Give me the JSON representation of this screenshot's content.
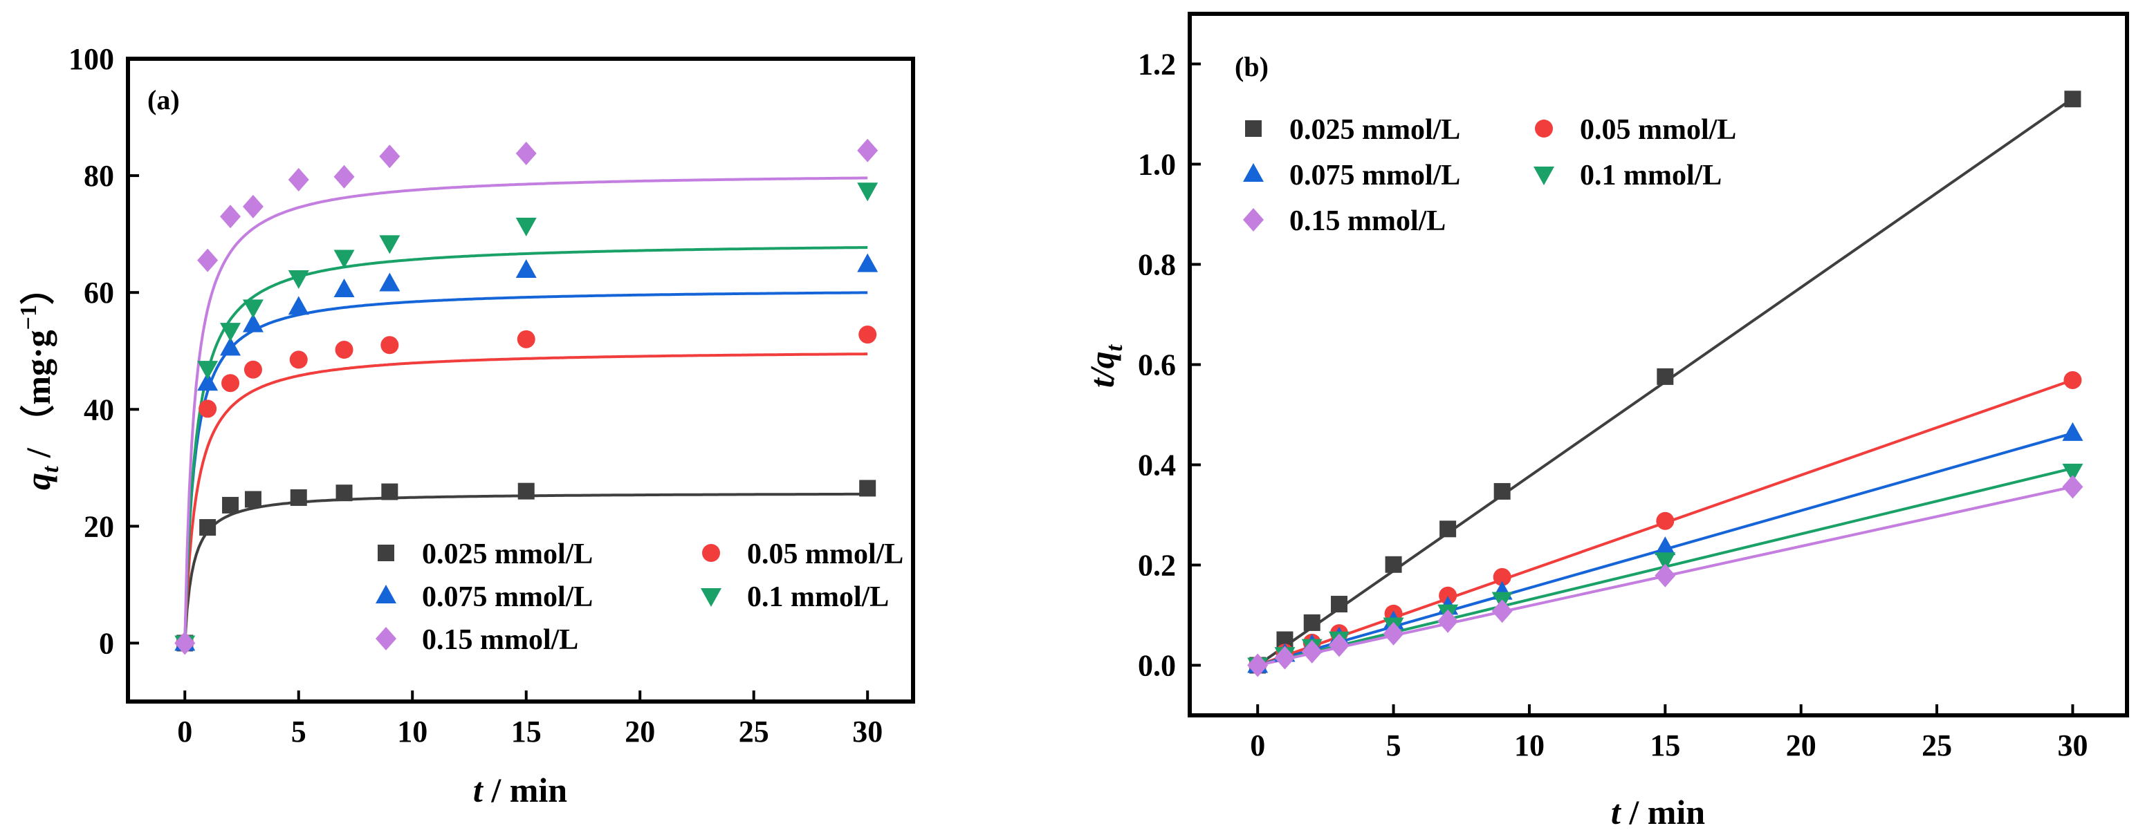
{
  "chart_data": [
    {
      "panel": "(a)",
      "type": "scatter",
      "xlabel_italic": "t",
      "xlabel_rest": " / min",
      "ylabel_q": "q",
      "ylabel_sub": "t",
      "ylabel_rest": " / （mg·g",
      "ylabel_sup": "−1",
      "ylabel_close": "）",
      "xlim": [
        -2.5,
        32
      ],
      "ylim": [
        -10,
        100
      ],
      "xticks": [
        0,
        5,
        10,
        15,
        20,
        25,
        30
      ],
      "yticks": [
        0,
        20,
        40,
        60,
        80,
        100
      ],
      "legend_columns": 2,
      "legend_position": "bottom-right",
      "fit_model": "pseudo-second-order",
      "series": [
        {
          "name": "0.025 mmol/L",
          "marker": "square",
          "color": "#3f3f3f",
          "x": [
            0,
            1,
            2,
            3,
            5,
            7,
            9,
            15,
            30
          ],
          "y": [
            0,
            19.8,
            23.6,
            24.6,
            24.9,
            25.7,
            25.9,
            26.0,
            26.5
          ],
          "fit": {
            "qe": 25.8,
            "k": 0.11
          }
        },
        {
          "name": "0.05 mmol/L",
          "marker": "circle",
          "color": "#f23d3d",
          "x": [
            0,
            1,
            2,
            3,
            5,
            7,
            9,
            15,
            30
          ],
          "y": [
            0,
            40.1,
            44.5,
            46.8,
            48.5,
            50.2,
            51.0,
            52.0,
            52.8
          ],
          "fit": {
            "qe": 50.3,
            "k": 0.04
          }
        },
        {
          "name": "0.075 mmol/L",
          "marker": "triangle-up",
          "color": "#1565d8",
          "x": [
            0,
            1,
            2,
            3,
            5,
            7,
            9,
            15,
            30
          ],
          "y": [
            0,
            44.5,
            50.5,
            54.5,
            57.5,
            60.5,
            61.5,
            63.8,
            64.8
          ],
          "fit": {
            "qe": 60.8,
            "k": 0.04
          }
        },
        {
          "name": "0.1 mmol/L",
          "marker": "triangle-down",
          "color": "#1aa168",
          "x": [
            0,
            1,
            2,
            3,
            5,
            7,
            9,
            15,
            30
          ],
          "y": [
            0,
            47.0,
            53.5,
            57.5,
            62.5,
            66.0,
            68.5,
            71.5,
            77.5
          ],
          "fit": {
            "qe": 68.8,
            "k": 0.03
          }
        },
        {
          "name": "0.15 mmol/L",
          "marker": "diamond",
          "color": "#c37ee0",
          "x": [
            0,
            1,
            2,
            3,
            5,
            7,
            9,
            15,
            30
          ],
          "y": [
            0,
            65.5,
            73.0,
            74.7,
            79.3,
            79.8,
            83.3,
            83.8,
            84.3
          ],
          "fit": {
            "qe": 80.7,
            "k": 0.03
          }
        }
      ]
    },
    {
      "panel": "(b)",
      "type": "scatter",
      "xlabel_italic": "t",
      "xlabel_rest": " / min",
      "ylabel_t": "t/q",
      "ylabel_sub": "t",
      "xlim": [
        -2.5,
        32
      ],
      "ylim": [
        -0.1,
        1.3
      ],
      "xticks": [
        0,
        5,
        10,
        15,
        20,
        25,
        30
      ],
      "yticks": [
        0.0,
        0.2,
        0.4,
        0.6,
        0.8,
        1.0,
        1.2
      ],
      "legend_columns": 2,
      "legend_position": "top-left",
      "fit_model": "linear",
      "series": [
        {
          "name": "0.025 mmol/L",
          "marker": "square",
          "color": "#3f3f3f",
          "x": [
            0,
            1,
            2,
            3,
            5,
            7,
            9,
            15,
            30
          ],
          "y": [
            0,
            0.051,
            0.085,
            0.122,
            0.201,
            0.272,
            0.347,
            0.576,
            1.13
          ],
          "fit": {
            "slope": 0.0377,
            "intercept": 0.0
          }
        },
        {
          "name": "0.05 mmol/L",
          "marker": "circle",
          "color": "#f23d3d",
          "x": [
            0,
            1,
            2,
            3,
            5,
            7,
            9,
            15,
            30
          ],
          "y": [
            0,
            0.025,
            0.045,
            0.064,
            0.103,
            0.139,
            0.176,
            0.288,
            0.569
          ],
          "fit": {
            "slope": 0.01897,
            "intercept": 0.0
          }
        },
        {
          "name": "0.075 mmol/L",
          "marker": "triangle-up",
          "color": "#1565d8",
          "x": [
            0,
            1,
            2,
            3,
            5,
            7,
            9,
            15,
            30
          ],
          "y": [
            0,
            0.022,
            0.04,
            0.055,
            0.087,
            0.116,
            0.146,
            0.235,
            0.463
          ],
          "fit": {
            "slope": 0.01543,
            "intercept": 0.0
          }
        },
        {
          "name": "0.1 mmol/L",
          "marker": "triangle-down",
          "color": "#1aa168",
          "x": [
            0,
            1,
            2,
            3,
            5,
            7,
            9,
            15,
            30
          ],
          "y": [
            0,
            0.021,
            0.037,
            0.052,
            0.08,
            0.106,
            0.131,
            0.21,
            0.387
          ],
          "fit": {
            "slope": 0.0131,
            "intercept": 0.0
          }
        },
        {
          "name": "0.15 mmol/L",
          "marker": "diamond",
          "color": "#c37ee0",
          "x": [
            0,
            1,
            2,
            3,
            5,
            7,
            9,
            15,
            30
          ],
          "y": [
            0,
            0.015,
            0.027,
            0.04,
            0.063,
            0.088,
            0.108,
            0.179,
            0.356
          ],
          "fit": {
            "slope": 0.01187,
            "intercept": 0.0
          }
        }
      ]
    }
  ]
}
